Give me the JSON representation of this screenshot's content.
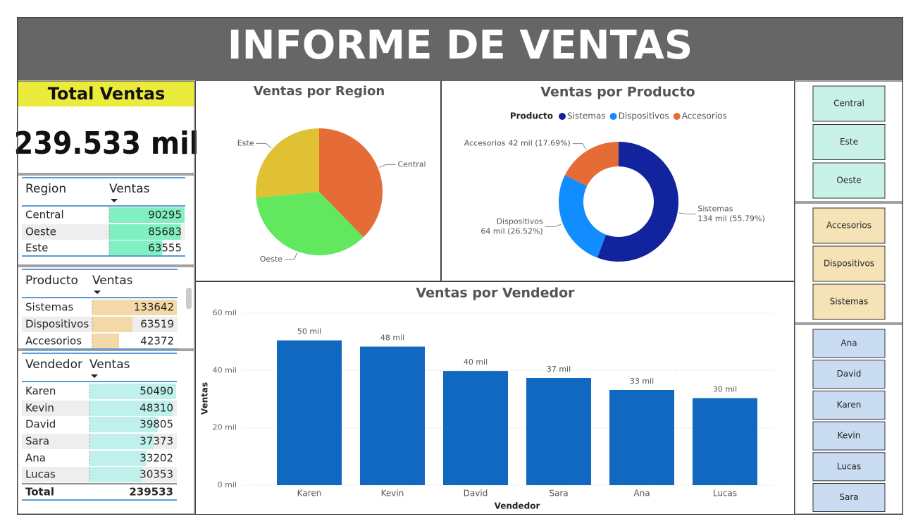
{
  "header": {
    "title": "INFORME DE VENTAS"
  },
  "kpi": {
    "label": "Total Ventas",
    "value": "239.533 mil"
  },
  "tables": [
    {
      "columns": [
        "Region",
        "Ventas"
      ],
      "rows": [
        [
          "Central",
          90295
        ],
        [
          "Oeste",
          85683
        ],
        [
          "Este",
          63555
        ]
      ]
    },
    {
      "columns": [
        "Producto",
        "Ventas"
      ],
      "rows": [
        [
          "Sistemas",
          133642
        ],
        [
          "Dispositivos",
          63519
        ],
        [
          "Accesorios",
          42372
        ]
      ]
    },
    {
      "columns": [
        "Vendedor",
        "Ventas"
      ],
      "rows": [
        [
          "Karen",
          50490
        ],
        [
          "Kevin",
          48310
        ],
        [
          "David",
          39805
        ],
        [
          "Sara",
          37373
        ],
        [
          "Ana",
          33202
        ],
        [
          "Lucas",
          30353
        ]
      ],
      "total": [
        "Total",
        239533
      ]
    }
  ],
  "slicers": [
    [
      "Central",
      "Este",
      "Oeste"
    ],
    [
      "Accesorios",
      "Dispositivos",
      "Sistemas"
    ],
    [
      "Ana",
      "David",
      "Karen",
      "Kevin",
      "Lucas",
      "Sara"
    ]
  ],
  "chart_data": [
    {
      "type": "pie",
      "title": "Ventas por Region",
      "categories": [
        "Central",
        "Oeste",
        "Este"
      ],
      "values": [
        90295,
        85683,
        63555
      ],
      "colors": [
        "#e66c37",
        "#62e85e",
        "#e0c133"
      ]
    },
    {
      "type": "donut",
      "title": "Ventas por Producto",
      "legend_title": "Producto",
      "categories": [
        "Sistemas",
        "Dispositivos",
        "Accesorios"
      ],
      "values": [
        133642,
        63519,
        42372
      ],
      "value_labels": [
        "134 mil (55.79%)",
        "64 mil (26.52%)",
        "42 mil (17.69%)"
      ],
      "colors": [
        "#12239e",
        "#118dff",
        "#e66c37"
      ]
    },
    {
      "type": "bar",
      "title": "Ventas por Vendedor",
      "x_label": "Vendedor",
      "y_label": "Ventas",
      "categories": [
        "Karen",
        "Kevin",
        "David",
        "Sara",
        "Ana",
        "Lucas"
      ],
      "values": [
        50490,
        48310,
        39805,
        37373,
        33202,
        30353
      ],
      "value_labels": [
        "50 mil",
        "48 mil",
        "40 mil",
        "37 mil",
        "33 mil",
        "30 mil"
      ],
      "color": "#1168c0",
      "ylim": [
        0,
        60000
      ],
      "yticks": [
        {
          "value": 0,
          "label": "0 mil"
        },
        {
          "value": 20000,
          "label": "20 mil"
        },
        {
          "value": 40000,
          "label": "40 mil"
        },
        {
          "value": 60000,
          "label": "60 mil"
        }
      ],
      "grid": true
    }
  ]
}
